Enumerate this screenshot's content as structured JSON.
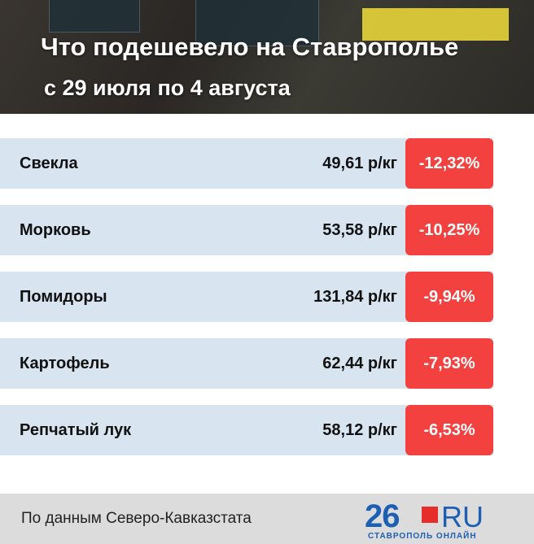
{
  "header": {
    "title": "Что подешевело на Ставрополье",
    "subtitle": "с 29 июля по 4 августа"
  },
  "table": {
    "rows": [
      [
        "Свекла",
        "49,61 р/кг",
        "-12,32%"
      ],
      [
        "Морковь",
        "53,58 р/кг",
        "-10,25%"
      ],
      [
        "Помидоры",
        "131,84 р/кг",
        "-9,94%"
      ],
      [
        "Картофель",
        "62,44 р/кг",
        "-7,93%"
      ],
      [
        "Репчатый лук",
        "58,12 р/кг",
        "-6,53%"
      ]
    ]
  },
  "footer": {
    "source": "По данным Северо-Кавказстата",
    "logo": {
      "number": "26",
      "domain": "RU",
      "tagline": "СТАВРОПОЛЬ ОНЛАЙН"
    }
  }
}
